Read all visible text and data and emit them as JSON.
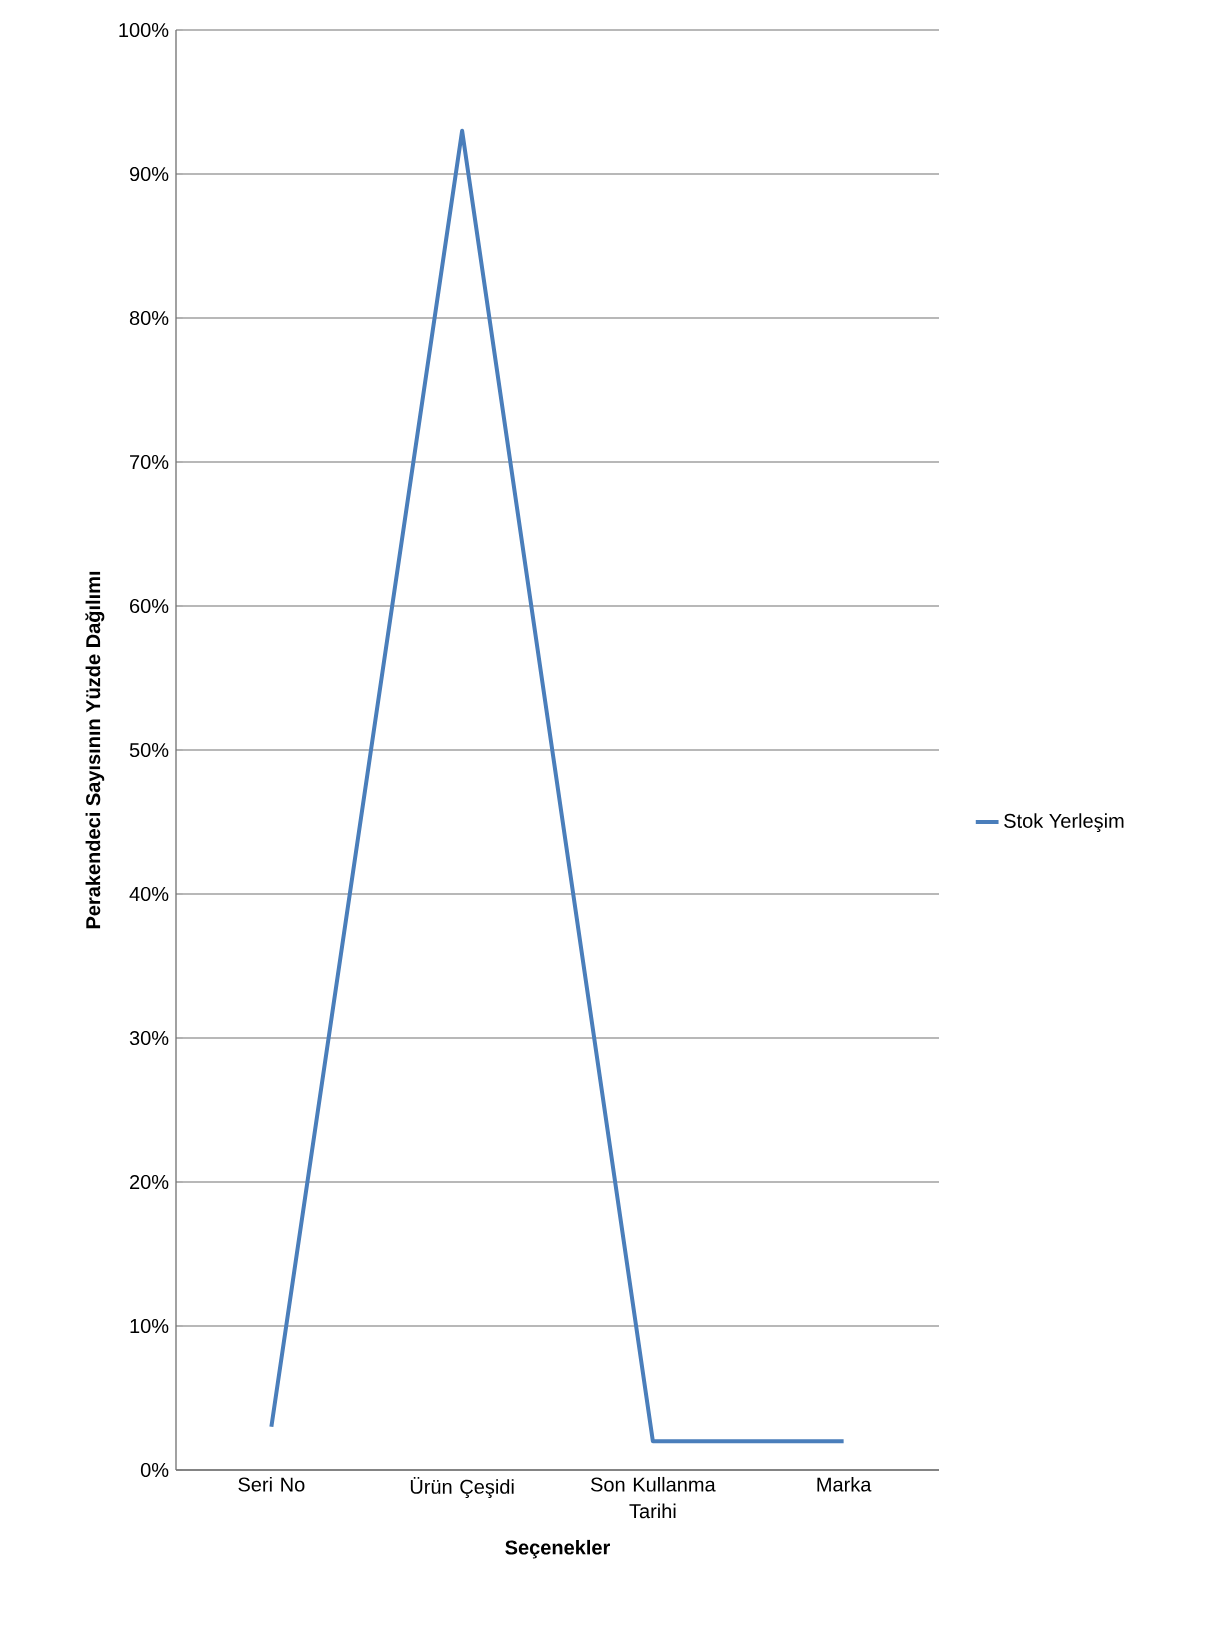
{
  "chart_data": {
    "type": "line",
    "xlabel": "Seçenekler",
    "ylabel": "Perakendeci Sayısının Yüzde Dağılımı",
    "categories": [
      "Seri No",
      "Ürün Çeşidi",
      "Son Kullanma Tarihi",
      "Marka"
    ],
    "series": [
      {
        "name": "Stok Yerleşim",
        "color": "#4a7ebb",
        "values": [
          3,
          93,
          2,
          2
        ]
      }
    ],
    "ylim": [
      0,
      100
    ],
    "yticks": [
      {
        "value": 0,
        "label": "0%"
      },
      {
        "value": 10,
        "label": "10%"
      },
      {
        "value": 20,
        "label": "20%"
      },
      {
        "value": 30,
        "label": "30%"
      },
      {
        "value": 40,
        "label": "40%"
      },
      {
        "value": 50,
        "label": "50%"
      },
      {
        "value": 60,
        "label": "60%"
      },
      {
        "value": 70,
        "label": "70%"
      },
      {
        "value": 80,
        "label": "80%"
      },
      {
        "value": 90,
        "label": "90%"
      },
      {
        "value": 100,
        "label": "100%"
      }
    ],
    "grid": "y",
    "legend": "right",
    "marker": "none",
    "line_style": "solid"
  }
}
